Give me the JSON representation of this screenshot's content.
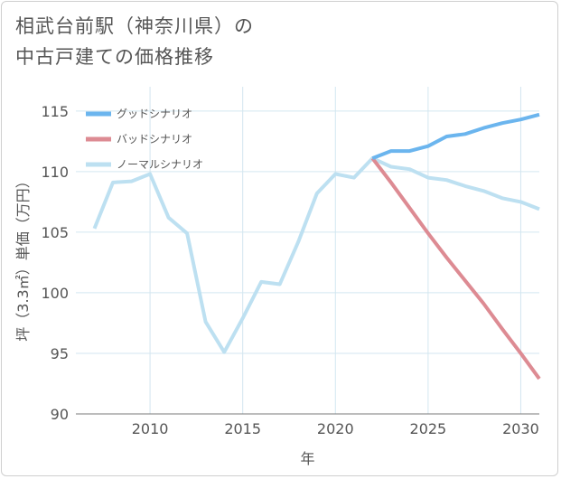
{
  "title": {
    "line1": "相武台前駅（神奈川県）の",
    "line2": "中古戸建ての価格推移"
  },
  "chart_data": {
    "type": "line",
    "xlabel": "年",
    "ylabel": "坪（3.3㎡）単価（万円）",
    "xlim": [
      2006,
      2031
    ],
    "ylim": [
      90,
      117
    ],
    "x_ticks": [
      "2010",
      "2015",
      "2020",
      "2025",
      "2030"
    ],
    "y_ticks": [
      "90",
      "95",
      "100",
      "105",
      "110",
      "115"
    ],
    "grid": true,
    "legend_position": "top-left",
    "series": [
      {
        "name": "グッドシナリオ",
        "color": "#6bb5ee",
        "x": [
          2022,
          2023,
          2024,
          2025,
          2026,
          2027,
          2028,
          2029,
          2030,
          2031
        ],
        "values": [
          111.1,
          111.7,
          111.7,
          112.1,
          112.9,
          113.1,
          113.6,
          114.0,
          114.3,
          114.7
        ]
      },
      {
        "name": "バッドシナリオ",
        "color": "#dd8b93",
        "x": [
          2022,
          2023,
          2024,
          2025,
          2026,
          2027,
          2028,
          2029,
          2030,
          2031
        ],
        "values": [
          111.1,
          109.1,
          107.0,
          104.9,
          102.9,
          101.0,
          99.1,
          97.0,
          95.0,
          92.9
        ]
      },
      {
        "name": "ノーマルシナリオ",
        "color": "#bde0f1",
        "x": [
          2007,
          2008,
          2009,
          2010,
          2011,
          2012,
          2013,
          2014,
          2015,
          2016,
          2017,
          2018,
          2019,
          2020,
          2021,
          2022,
          2023,
          2024,
          2025,
          2026,
          2027,
          2028,
          2029,
          2030,
          2031
        ],
        "values": [
          105.3,
          109.1,
          109.2,
          109.8,
          106.2,
          104.9,
          97.6,
          95.1,
          97.9,
          100.9,
          100.7,
          104.2,
          108.2,
          109.8,
          109.5,
          111.1,
          110.4,
          110.2,
          109.5,
          109.3,
          108.8,
          108.4,
          107.8,
          107.5,
          106.9
        ]
      }
    ]
  }
}
